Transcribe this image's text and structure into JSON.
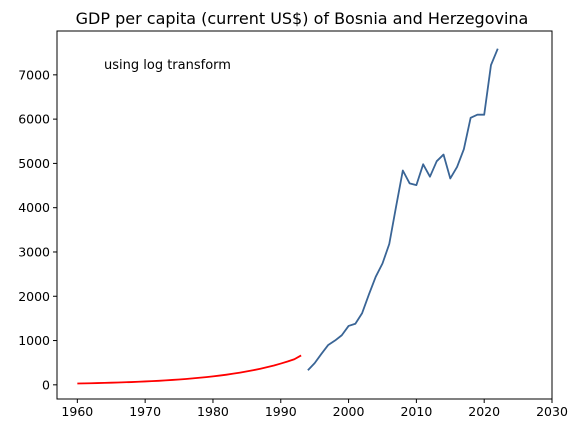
{
  "chart_data": {
    "type": "line",
    "title": "GDP per capita (current US$) of Bosnia and Herzegovina",
    "xlabel": "",
    "ylabel": "",
    "annotation": "using log transform",
    "xlim": [
      1957,
      2030
    ],
    "ylim": [
      -320,
      7990
    ],
    "x_ticks": [
      1960,
      1970,
      1980,
      1990,
      2000,
      2010,
      2020,
      2030
    ],
    "y_ticks": [
      0,
      1000,
      2000,
      3000,
      4000,
      5000,
      6000,
      7000
    ],
    "grid": false,
    "legend": "none",
    "series": [
      {
        "color": "#ff0000",
        "x": [
          1960,
          1961,
          1962,
          1963,
          1964,
          1965,
          1966,
          1967,
          1968,
          1969,
          1970,
          1971,
          1972,
          1973,
          1974,
          1975,
          1976,
          1977,
          1978,
          1979,
          1980,
          1981,
          1982,
          1983,
          1984,
          1985,
          1986,
          1987,
          1988,
          1989,
          1990,
          1991,
          1992,
          1993
        ],
        "y": [
          30,
          33,
          36,
          40,
          44,
          48,
          53,
          58,
          63,
          69,
          76,
          83,
          91,
          100,
          110,
          120,
          132,
          145,
          159,
          174,
          191,
          209,
          229,
          252,
          276,
          303,
          332,
          364,
          399,
          437,
          480,
          526,
          577,
          664
        ]
      },
      {
        "color": "#3a6596",
        "x": [
          1994,
          1995,
          1996,
          1997,
          1998,
          1999,
          2000,
          2001,
          2002,
          2003,
          2004,
          2005,
          2006,
          2007,
          2008,
          2009,
          2010,
          2011,
          2012,
          2013,
          2014,
          2015,
          2016,
          2017,
          2018,
          2019,
          2020,
          2021,
          2022
        ],
        "y": [
          330,
          490,
          700,
          900,
          1000,
          1120,
          1330,
          1380,
          1620,
          2040,
          2440,
          2740,
          3180,
          4020,
          4840,
          4550,
          4510,
          4980,
          4700,
          5050,
          5200,
          4660,
          4920,
          5320,
          6030,
          6100,
          6100,
          7220,
          7590
        ]
      }
    ]
  }
}
